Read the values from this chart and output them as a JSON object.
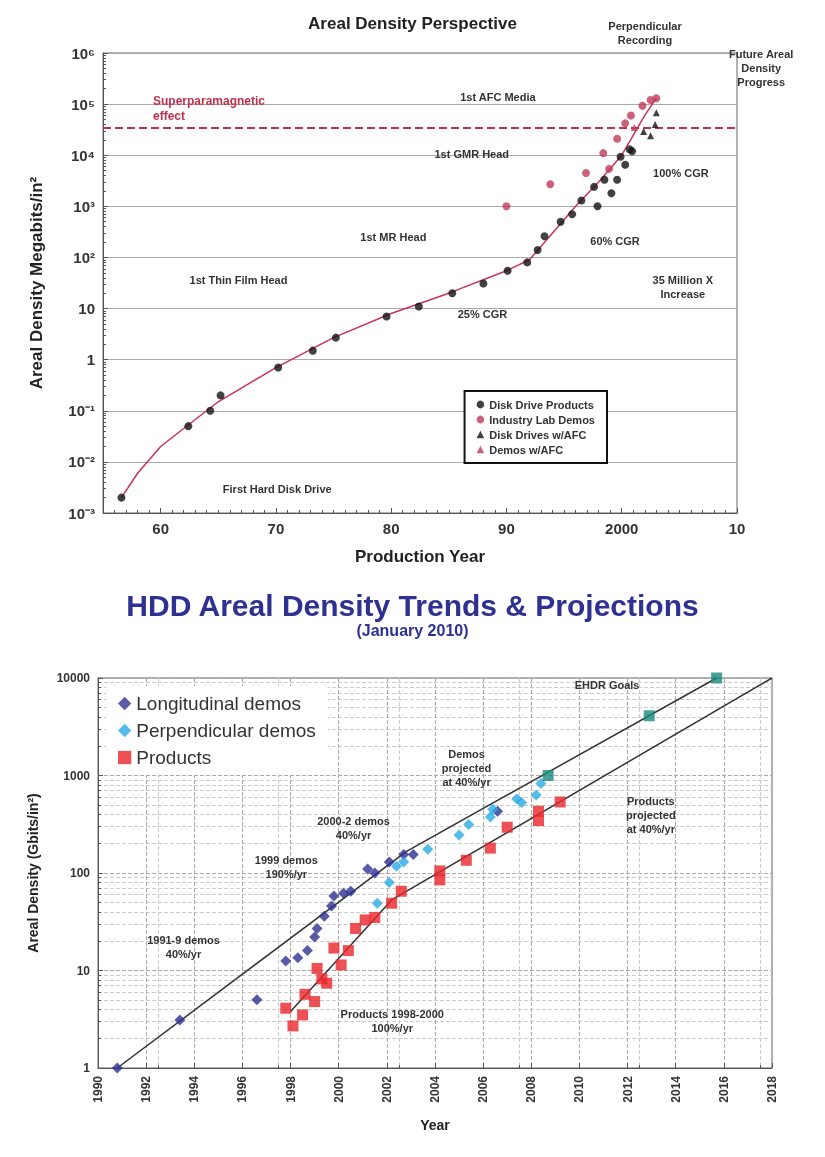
{
  "chart_data": [
    {
      "type": "scatter",
      "title": "Areal Density Perspective",
      "xlabel": "Production Year",
      "ylabel": "Areal Density Megabits/in²",
      "log": "y",
      "grid": "y",
      "legend": "bottom right",
      "xlim": [
        1955,
        2010
      ],
      "xticks": [
        {
          "value": 1960,
          "label": "60"
        },
        {
          "value": 1970,
          "label": "70"
        },
        {
          "value": 1980,
          "label": "80"
        },
        {
          "value": 1990,
          "label": "90"
        },
        2000,
        {
          "value": 2010,
          "label": "10"
        }
      ],
      "ylim": [
        0.001,
        1000000
      ],
      "yticks": [
        {
          "value": 0.001,
          "label": "10⁻³"
        },
        {
          "value": 0.01,
          "label": "10⁻²"
        },
        {
          "value": 0.1,
          "label": "10⁻¹"
        },
        1,
        10,
        {
          "value": 100,
          "label": "10²"
        },
        {
          "value": 1000,
          "label": "10³"
        },
        {
          "value": 10000,
          "label": "10⁴"
        },
        {
          "value": 100000,
          "label": "10⁵"
        },
        {
          "value": 1000000,
          "label": "10⁶"
        }
      ],
      "series": [
        {
          "type": "line",
          "color": "#c8345a",
          "marker": "none",
          "x": [
            1956.6,
            1958,
            1960,
            1962,
            1965,
            1970,
            1975,
            1980,
            1985,
            1990,
            1992,
            1994,
            1996,
            1998,
            2000,
            2002,
            2003
          ],
          "values": [
            0.002,
            0.006,
            0.02,
            0.045,
            0.15,
            0.7,
            2.7,
            8,
            20,
            55,
            90,
            300,
            1000,
            3000,
            10000,
            60000,
            130000
          ]
        },
        {
          "name": "Disk Drive Products",
          "color": "#111111",
          "marker": "circle",
          "x": [
            1956.6,
            1962.4,
            1964.3,
            1965.2,
            1970.2,
            1973.2,
            1975.2,
            1979.6,
            1982.4,
            1985.3,
            1988,
            1990.1,
            1991.8,
            1992.7,
            1993.3,
            1994.7,
            1995.7,
            1996.5,
            1997.6,
            1997.9,
            1998.5,
            1999.1,
            1999.6,
            1999.9,
            2000.3,
            2000.7,
            2000.9
          ],
          "values": [
            0.002,
            0.05,
            0.1,
            0.2,
            0.7,
            1.5,
            2.7,
            7,
            11,
            20,
            31,
            55,
            80,
            140,
            260,
            500,
            700,
            1300,
            2400,
            1000,
            3300,
            1800,
            3300,
            9300,
            6500,
            13000,
            12000
          ]
        },
        {
          "name": "Industry Lab Demos",
          "color": "#c0395a",
          "marker": "circle",
          "x": [
            1990,
            1993.8,
            1996.9,
            1998.4,
            1998.9,
            1999.6,
            2000.3,
            2000.8,
            2001.8,
            2002.5,
            2003
          ],
          "values": [
            1000,
            2700,
            4500,
            11000,
            5400,
            21000,
            42000,
            60000,
            93000,
            120000,
            130000
          ]
        },
        {
          "name": "Disk Drives w/AFC",
          "color": "#111111",
          "marker": "triangle",
          "x": [
            2001.9,
            2002.5,
            2002.9,
            2003
          ],
          "values": [
            29000,
            24000,
            40000,
            68000
          ]
        },
        {
          "name": "Demos w/AFC",
          "color": "#c0395a",
          "marker": "triangle",
          "x": [
            2001.1
          ],
          "values": [
            35000
          ]
        }
      ],
      "ref_lines": [
        {
          "axis": "y",
          "value": 35000,
          "label": "Superparamagnetic\neffect",
          "color": "#c0304f",
          "line_style": "dashed"
        }
      ],
      "annotations": [
        "First Hard Disk Drive",
        "1st Thin Film Head",
        "1st MR Head",
        "1st GMR Head",
        "1st AFC Media",
        "Perpendicular\nRecording",
        "Future Areal\nDensity\nProgress",
        "25% CGR",
        "60% CGR",
        "100% CGR",
        "35 Million X\nIncrease"
      ]
    },
    {
      "type": "scatter",
      "title": "HDD Areal Density Trends & Projections",
      "subtitle": "(January 2010)",
      "xlabel": "Year",
      "ylabel": "Areal Density (Gbits/in²)",
      "log": "y",
      "grid": true,
      "legend": "top left",
      "xlim": [
        1990,
        2018
      ],
      "xticks": [
        1990,
        1992,
        1994,
        1996,
        1998,
        2000,
        2002,
        2004,
        2006,
        2008,
        2010,
        2012,
        2014,
        2016,
        2018
      ],
      "ylim": [
        1,
        10000
      ],
      "yticks": [
        1,
        10,
        100,
        1000,
        10000
      ],
      "series": [
        {
          "type": "line",
          "color": "#333333",
          "marker": "none",
          "x": [
            1990.8,
            2002.8,
            2015.7
          ],
          "values": [
            1,
            166,
            10000
          ]
        },
        {
          "type": "line",
          "color": "#333333",
          "marker": "none",
          "x": [
            1998,
            2002.2,
            2018
          ],
          "values": [
            3.8,
            53,
            10000
          ]
        },
        {
          "name": "Longitudinal demos",
          "color": "#2e3192",
          "marker": "diamond",
          "x": [
            1990.8,
            1993.4,
            1996.6,
            1997.8,
            1998.3,
            1998.7,
            1999,
            1999.1,
            1999.4,
            1999.7,
            1999.8,
            2000.2,
            2000.5,
            2001.2,
            2001.5,
            2002.1,
            2002.7,
            2003.1,
            2006.6
          ],
          "values": [
            1,
            3.1,
            5,
            12.5,
            13.5,
            16,
            22,
            27,
            36,
            46,
            58,
            62,
            65,
            110,
            100,
            130,
            155,
            155,
            430
          ]
        },
        {
          "name": "Perpendicular demos",
          "color": "#29abe2",
          "marker": "diamond",
          "x": [
            2001.6,
            2002.1,
            2002.4,
            2002.7,
            2003.7,
            2005,
            2005.4,
            2006.3,
            2006.4,
            2007.4,
            2007.6,
            2008.2,
            2008.4
          ],
          "values": [
            49,
            80,
            117,
            130,
            175,
            245,
            315,
            375,
            450,
            575,
            530,
            630,
            830
          ]
        },
        {
          "name": "Products",
          "color": "#e8262a",
          "marker": "square",
          "x": [
            1997.8,
            1998.1,
            1998.5,
            1998.6,
            1999,
            1999.1,
            1999.3,
            1999.5,
            1999.8,
            2000.1,
            2000.4,
            2000.7,
            2001.1,
            2001.5,
            2002.2,
            2002.6,
            2004.2,
            2004.2,
            2005.3,
            2006.3,
            2007,
            2008.3,
            2008.3,
            2009.2
          ],
          "values": [
            4.1,
            2.7,
            3.5,
            5.7,
            4.8,
            10.5,
            8.2,
            7.4,
            17,
            11.4,
            16,
            27,
            33,
            35,
            49,
            65,
            105,
            85,
            135,
            180,
            295,
            345,
            430,
            535
          ]
        },
        {
          "color": "#1a8a7a",
          "marker": "square",
          "x": [
            2008.7,
            2012.9,
            2015.7
          ],
          "values": [
            1000,
            4100,
            10000
          ]
        }
      ],
      "annotations": [
        "1991-9 demos\n40%/yr",
        "1999 demos\n190%/yr",
        "2000-2 demos\n40%/yr",
        "Products 1998-2000\n100%/yr",
        "Demos\nprojected\nat 40%/yr",
        "Products\nprojected\nat 40%/yr",
        "EHDR Goals"
      ]
    }
  ]
}
